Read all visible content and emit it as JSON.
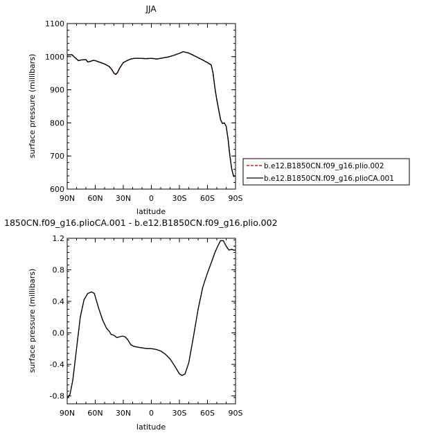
{
  "chart_data": [
    {
      "type": "line",
      "title": "JJA",
      "xlabel": "latitude",
      "ylabel": "surface pressure (millibars)",
      "xlim": [
        90,
        -90
      ],
      "ylim": [
        600,
        1100
      ],
      "x_tick_values": [
        90,
        60,
        30,
        0,
        -30,
        -60,
        -90
      ],
      "x_tick_labels": [
        "90N",
        "60N",
        "30N",
        "0",
        "30S",
        "60S",
        "90S"
      ],
      "y_tick_values": [
        600,
        700,
        800,
        900,
        1000,
        1100
      ],
      "y_tick_labels": [
        "600",
        "700",
        "800",
        "900",
        "1000",
        "1100"
      ],
      "x": [
        90,
        85,
        82,
        78,
        75,
        70,
        68,
        66,
        62,
        60,
        55,
        50,
        45,
        42,
        40,
        38,
        36,
        34,
        30,
        26,
        22,
        18,
        12,
        6,
        0,
        -6,
        -12,
        -18,
        -24,
        -30,
        -34,
        -40,
        -45,
        -50,
        -55,
        -60,
        -64,
        -66,
        -68,
        -70,
        -72,
        -74,
        -76,
        -78,
        -80,
        -82,
        -84,
        -86,
        -88,
        -90
      ],
      "series": [
        {
          "name": "b.e12.B1850CN.f09_g16.plio.002",
          "color": "#e0141e",
          "dash": "dashed",
          "values": [
            1005,
            1006,
            998,
            988,
            990,
            991,
            984,
            985,
            989,
            988,
            983,
            978,
            970,
            960,
            950,
            946,
            953,
            965,
            982,
            988,
            993,
            995,
            995,
            994,
            995,
            993,
            996,
            999,
            1004,
            1010,
            1015,
            1011,
            1004,
            997,
            990,
            982,
            975,
            950,
            905,
            870,
            840,
            810,
            798,
            800,
            790,
            752,
            700,
            660,
            638,
            640
          ]
        },
        {
          "name": "b.e12.B1850CN.f09_g16.plioCA.001",
          "color": "#000000",
          "dash": "solid",
          "values": [
            1005,
            1006,
            998,
            988,
            990,
            991,
            984,
            985,
            989,
            988,
            983,
            978,
            970,
            960,
            950,
            946,
            953,
            965,
            982,
            988,
            993,
            995,
            995,
            994,
            995,
            993,
            996,
            999,
            1004,
            1010,
            1015,
            1011,
            1004,
            997,
            990,
            982,
            975,
            950,
            905,
            870,
            840,
            810,
            798,
            800,
            790,
            752,
            700,
            660,
            638,
            640
          ]
        }
      ],
      "legend_position": "right"
    },
    {
      "type": "line",
      "title": "1850CN.f09_g16.plioCA.001 - b.e12.B1850CN.f09_g16.plio.002",
      "xlabel": "latitude",
      "ylabel": "surface pressure (millibars)",
      "xlim": [
        90,
        -90
      ],
      "ylim": [
        -0.9,
        1.2
      ],
      "x_tick_values": [
        90,
        60,
        30,
        0,
        -30,
        -60,
        -90
      ],
      "x_tick_labels": [
        "90N",
        "60N",
        "30N",
        "0",
        "30S",
        "60S",
        "90S"
      ],
      "y_tick_values": [
        -0.8,
        -0.4,
        0.0,
        0.4,
        0.8,
        1.2
      ],
      "y_tick_labels": [
        "-0.8",
        "-0.4",
        "0.0",
        "0.4",
        "0.8",
        "1.2"
      ],
      "x": [
        90,
        87,
        84,
        80,
        76,
        72,
        68,
        64,
        61,
        58,
        56,
        52,
        48,
        45,
        43,
        40,
        37,
        34,
        31,
        28,
        25,
        22,
        19,
        15,
        10,
        5,
        0,
        -5,
        -10,
        -15,
        -20,
        -25,
        -30,
        -33,
        -36,
        -40,
        -45,
        -50,
        -55,
        -60,
        -65,
        -68,
        -71,
        -74,
        -77,
        -80,
        -83,
        -86,
        -88,
        -90
      ],
      "series": [
        {
          "name": "",
          "color": "#000000",
          "dash": "solid",
          "values": [
            -0.83,
            -0.78,
            -0.6,
            -0.2,
            0.2,
            0.42,
            0.5,
            0.52,
            0.5,
            0.38,
            0.3,
            0.16,
            0.06,
            0.02,
            -0.02,
            -0.03,
            -0.06,
            -0.05,
            -0.04,
            -0.05,
            -0.09,
            -0.15,
            -0.17,
            -0.18,
            -0.19,
            -0.2,
            -0.2,
            -0.21,
            -0.23,
            -0.27,
            -0.33,
            -0.42,
            -0.52,
            -0.54,
            -0.52,
            -0.38,
            -0.05,
            0.3,
            0.58,
            0.76,
            0.92,
            1.02,
            1.1,
            1.17,
            1.17,
            1.1,
            1.05,
            1.06,
            1.05,
            1.05
          ]
        }
      ]
    }
  ]
}
